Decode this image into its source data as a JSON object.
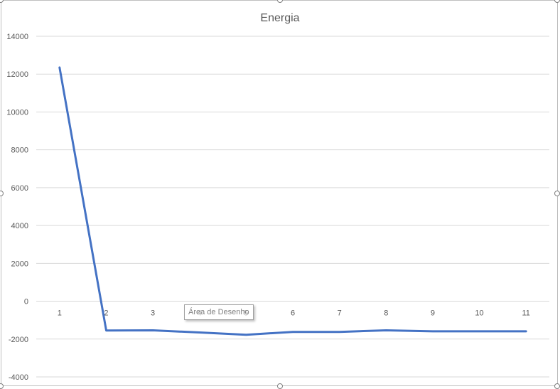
{
  "chart_data": {
    "type": "line",
    "title": "Energia",
    "xlabel": "",
    "ylabel": "",
    "categories": [
      "1",
      "2",
      "3",
      "4",
      "5",
      "6",
      "7",
      "8",
      "9",
      "10",
      "11"
    ],
    "series": [
      {
        "values": [
          12350,
          -1550,
          -1540,
          -1650,
          -1770,
          -1620,
          -1620,
          -1540,
          -1590,
          -1590,
          -1590
        ]
      }
    ],
    "ylim": [
      -4000,
      14000
    ],
    "yticks": [
      -4000,
      -2000,
      0,
      2000,
      4000,
      6000,
      8000,
      10000,
      12000,
      14000
    ],
    "grid": true,
    "legend": "none",
    "colors": {
      "line": "#4472c4",
      "grid": "#d9d9d9",
      "text": "#595959",
      "title": "#595959"
    }
  },
  "tooltip": {
    "text": "Área de Desenho"
  }
}
